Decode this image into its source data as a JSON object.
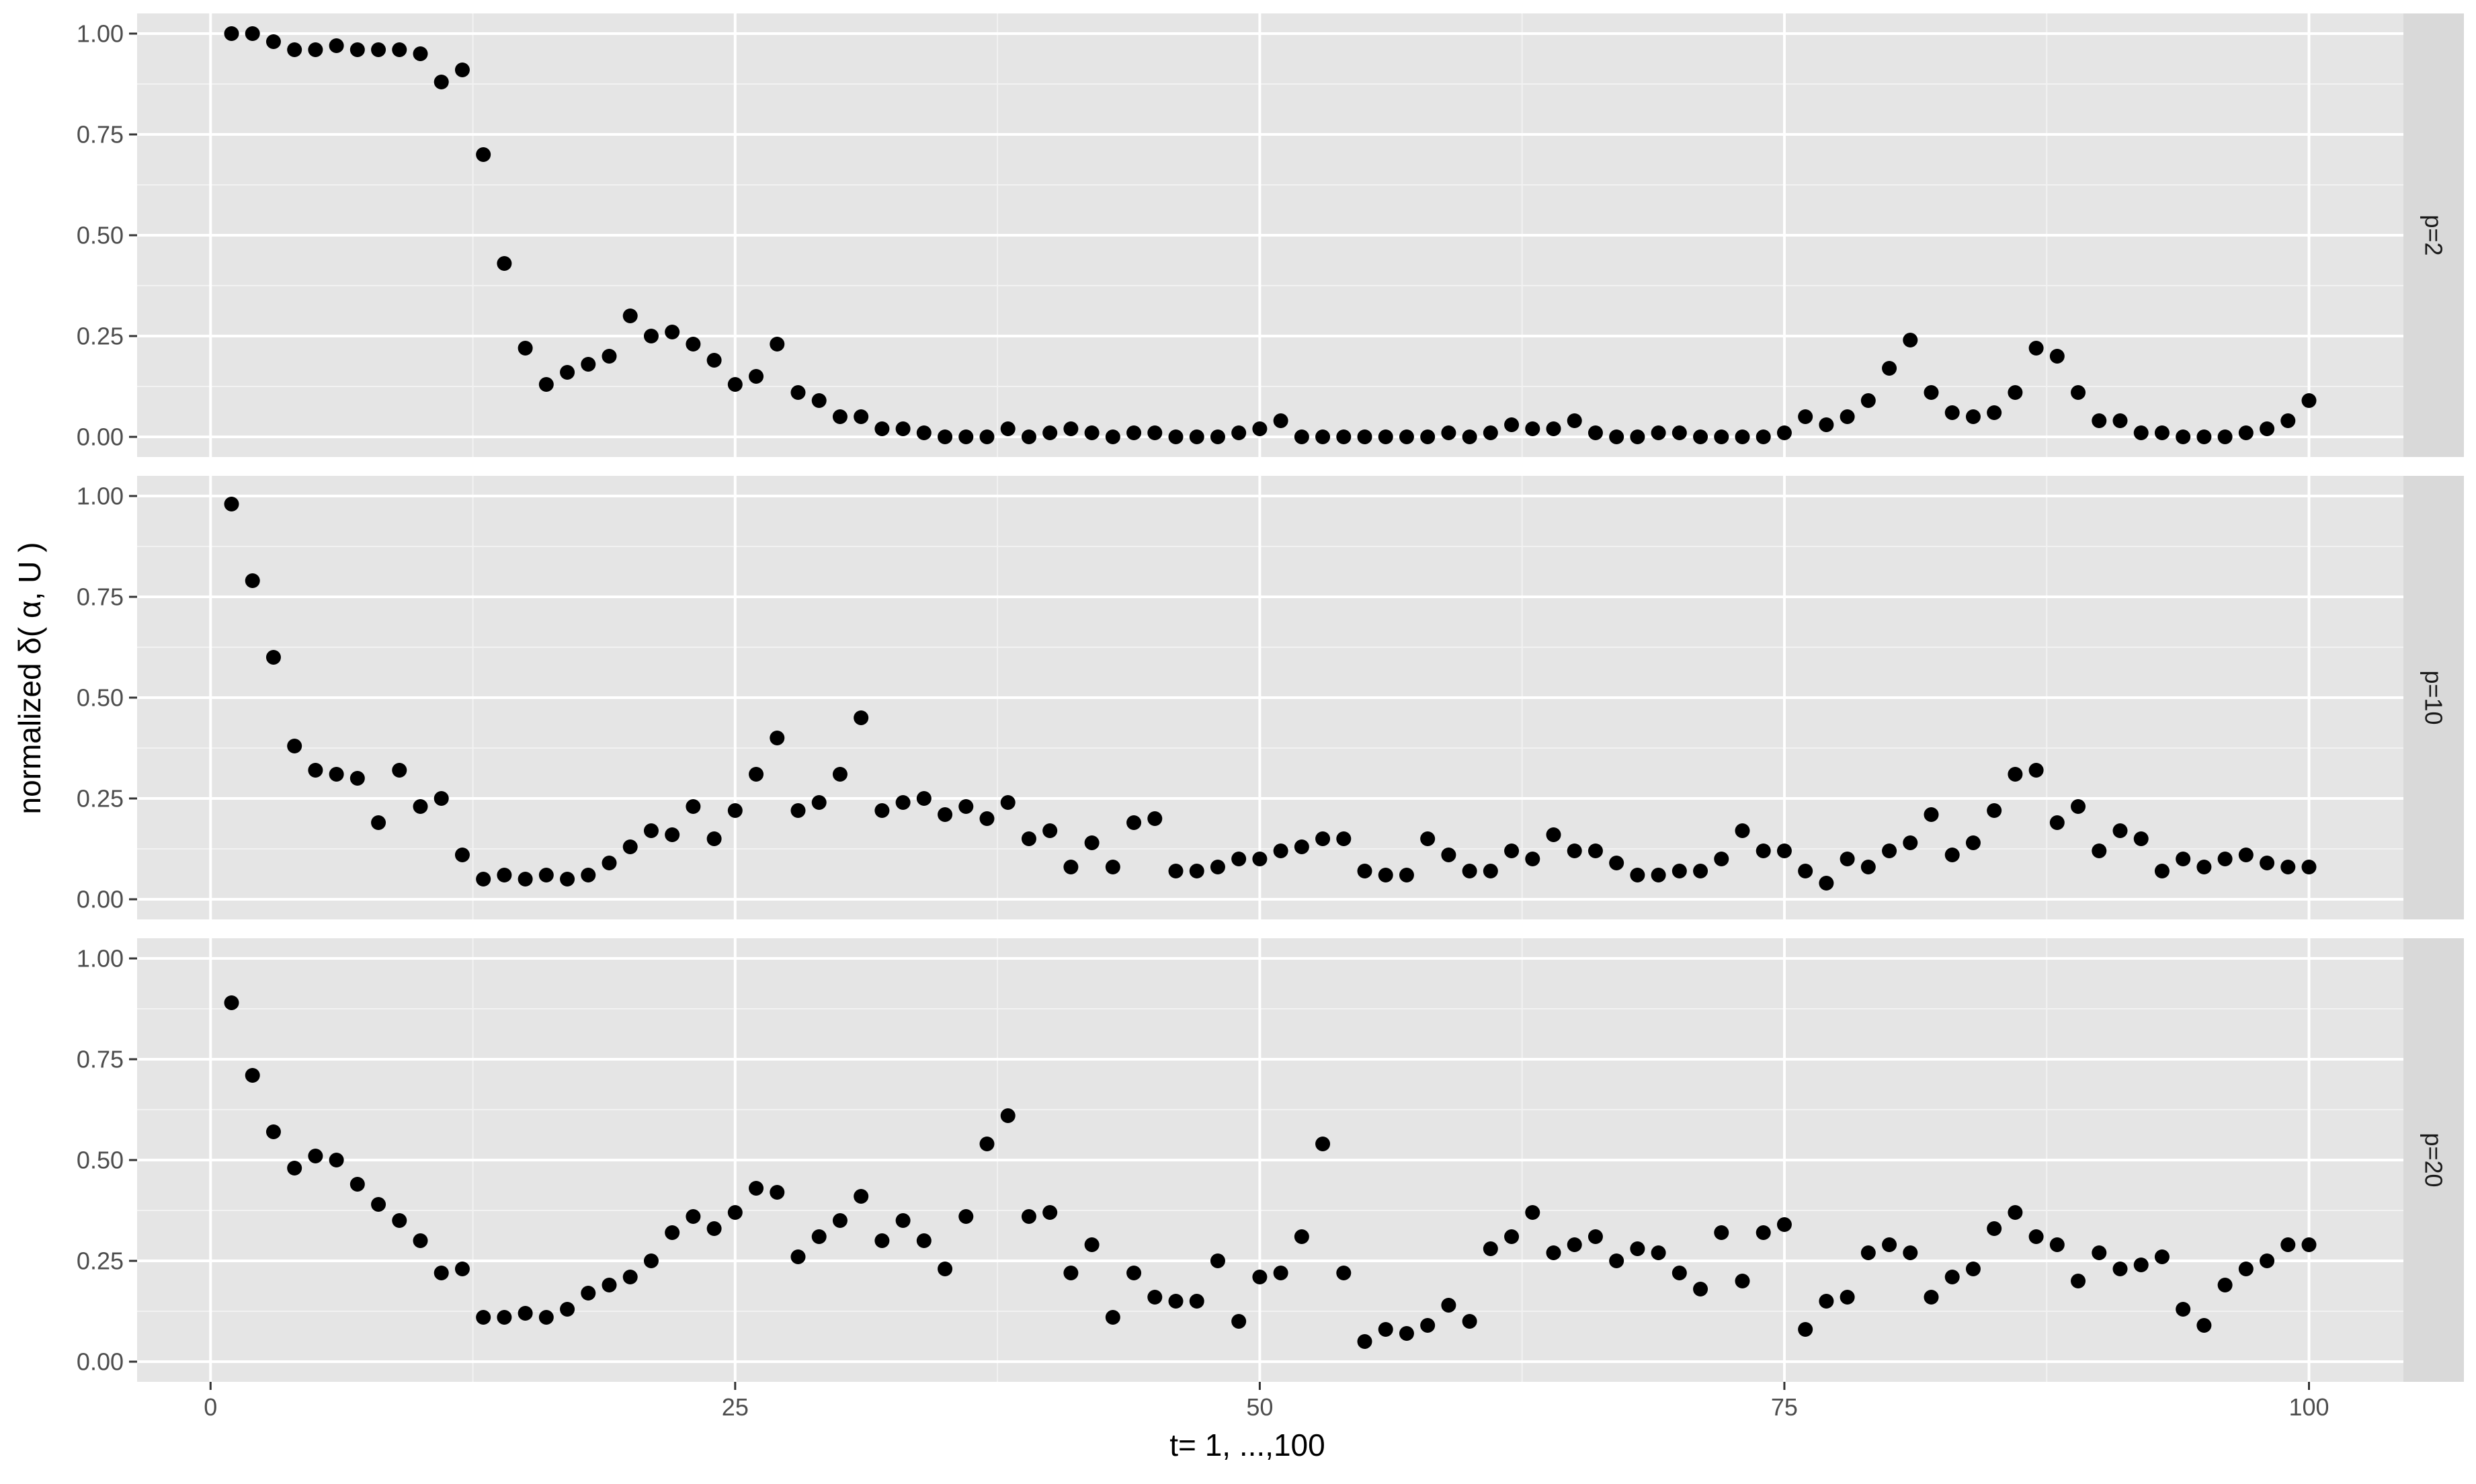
{
  "chart_data": {
    "type": "scatter",
    "layout": "faceted",
    "xlabel": "t= 1, ...,100",
    "ylabel": "normalized δ( α, U )",
    "xlim": [
      -3.5,
      104.5
    ],
    "ylim": [
      -0.05,
      1.05
    ],
    "x_ticks": [
      0,
      25,
      50,
      75,
      100
    ],
    "x_tick_labels": [
      "0",
      "25",
      "50",
      "75",
      "100"
    ],
    "y_ticks": [
      0,
      0.25,
      0.5,
      0.75,
      1.0
    ],
    "y_tick_labels": [
      "0.00",
      "0.25",
      "0.50",
      "0.75",
      "1.00"
    ],
    "grid": true,
    "panel_background": "#e5e5e5",
    "strip_background": "#d9d9d9",
    "point_color": "#000000",
    "facets": [
      {
        "label": "p=2",
        "x": [
          1,
          2,
          3,
          4,
          5,
          6,
          7,
          8,
          9,
          10,
          11,
          12,
          13,
          14,
          15,
          16,
          17,
          18,
          19,
          20,
          21,
          22,
          23,
          24,
          25,
          26,
          27,
          28,
          29,
          30,
          31,
          32,
          33,
          34,
          35,
          36,
          37,
          38,
          39,
          40,
          41,
          42,
          43,
          44,
          45,
          46,
          47,
          48,
          49,
          50,
          51,
          52,
          53,
          54,
          55,
          56,
          57,
          58,
          59,
          60,
          61,
          62,
          63,
          64,
          65,
          66,
          67,
          68,
          69,
          70,
          71,
          72,
          73,
          74,
          75,
          76,
          77,
          78,
          79,
          80,
          81,
          82,
          83,
          84,
          85,
          86,
          87,
          88,
          89,
          90,
          91,
          92,
          93,
          94,
          95,
          96,
          97,
          98,
          99,
          100
        ],
        "y": [
          1.0,
          1.0,
          0.98,
          0.96,
          0.96,
          0.97,
          0.96,
          0.96,
          0.96,
          0.95,
          0.88,
          0.91,
          0.7,
          0.43,
          0.22,
          0.13,
          0.16,
          0.18,
          0.2,
          0.3,
          0.25,
          0.26,
          0.23,
          0.19,
          0.13,
          0.15,
          0.23,
          0.11,
          0.09,
          0.05,
          0.05,
          0.02,
          0.02,
          0.01,
          0.0,
          0.0,
          0.0,
          0.02,
          0.0,
          0.01,
          0.02,
          0.01,
          0.0,
          0.01,
          0.01,
          0.0,
          0.0,
          0.0,
          0.01,
          0.02,
          0.04,
          0.0,
          0.0,
          0.0,
          0.0,
          0.0,
          0.0,
          0.0,
          0.01,
          0.0,
          0.01,
          0.03,
          0.02,
          0.02,
          0.04,
          0.01,
          0.0,
          0.0,
          0.01,
          0.01,
          0.0,
          0.0,
          0.0,
          0.0,
          0.01,
          0.05,
          0.03,
          0.05,
          0.09,
          0.17,
          0.24,
          0.11,
          0.06,
          0.05,
          0.06,
          0.11,
          0.22,
          0.2,
          0.11,
          0.04,
          0.04,
          0.01,
          0.01,
          0.0,
          0.0,
          0.0,
          0.01,
          0.02,
          0.04,
          0.09
        ]
      },
      {
        "label": "p=10",
        "x": [
          1,
          2,
          3,
          4,
          5,
          6,
          7,
          8,
          9,
          10,
          11,
          12,
          13,
          14,
          15,
          16,
          17,
          18,
          19,
          20,
          21,
          22,
          23,
          24,
          25,
          26,
          27,
          28,
          29,
          30,
          31,
          32,
          33,
          34,
          35,
          36,
          37,
          38,
          39,
          40,
          41,
          42,
          43,
          44,
          45,
          46,
          47,
          48,
          49,
          50,
          51,
          52,
          53,
          54,
          55,
          56,
          57,
          58,
          59,
          60,
          61,
          62,
          63,
          64,
          65,
          66,
          67,
          68,
          69,
          70,
          71,
          72,
          73,
          74,
          75,
          76,
          77,
          78,
          79,
          80,
          81,
          82,
          83,
          84,
          85,
          86,
          87,
          88,
          89,
          90,
          91,
          92,
          93,
          94,
          95,
          96,
          97,
          98,
          99,
          100
        ],
        "y": [
          0.98,
          0.79,
          0.6,
          0.38,
          0.32,
          0.31,
          0.3,
          0.19,
          0.32,
          0.23,
          0.25,
          0.11,
          0.05,
          0.06,
          0.05,
          0.06,
          0.05,
          0.06,
          0.09,
          0.13,
          0.17,
          0.16,
          0.23,
          0.15,
          0.22,
          0.31,
          0.4,
          0.22,
          0.24,
          0.31,
          0.45,
          0.22,
          0.24,
          0.25,
          0.21,
          0.23,
          0.2,
          0.24,
          0.15,
          0.17,
          0.08,
          0.14,
          0.08,
          0.19,
          0.2,
          0.07,
          0.07,
          0.08,
          0.1,
          0.1,
          0.12,
          0.13,
          0.15,
          0.15,
          0.07,
          0.06,
          0.06,
          0.15,
          0.11,
          0.07,
          0.07,
          0.12,
          0.1,
          0.16,
          0.12,
          0.12,
          0.09,
          0.06,
          0.06,
          0.07,
          0.07,
          0.1,
          0.17,
          0.12,
          0.12,
          0.07,
          0.04,
          0.1,
          0.08,
          0.12,
          0.14,
          0.21,
          0.11,
          0.14,
          0.22,
          0.31,
          0.32,
          0.19,
          0.23,
          0.12,
          0.17,
          0.15,
          0.07,
          0.1,
          0.08,
          0.1,
          0.11,
          0.09,
          0.08,
          0.08
        ]
      },
      {
        "label": "p=20",
        "x": [
          1,
          2,
          3,
          4,
          5,
          6,
          7,
          8,
          9,
          10,
          11,
          12,
          13,
          14,
          15,
          16,
          17,
          18,
          19,
          20,
          21,
          22,
          23,
          24,
          25,
          26,
          27,
          28,
          29,
          30,
          31,
          32,
          33,
          34,
          35,
          36,
          37,
          38,
          39,
          40,
          41,
          42,
          43,
          44,
          45,
          46,
          47,
          48,
          49,
          50,
          51,
          52,
          53,
          54,
          55,
          56,
          57,
          58,
          59,
          60,
          61,
          62,
          63,
          64,
          65,
          66,
          67,
          68,
          69,
          70,
          71,
          72,
          73,
          74,
          75,
          76,
          77,
          78,
          79,
          80,
          81,
          82,
          83,
          84,
          85,
          86,
          87,
          88,
          89,
          90,
          91,
          92,
          93,
          94,
          95,
          96,
          97,
          98,
          99,
          100
        ],
        "y": [
          0.89,
          0.71,
          0.57,
          0.48,
          0.51,
          0.5,
          0.44,
          0.39,
          0.35,
          0.3,
          0.22,
          0.23,
          0.11,
          0.11,
          0.12,
          0.11,
          0.13,
          0.17,
          0.19,
          0.21,
          0.25,
          0.32,
          0.36,
          0.33,
          0.37,
          0.43,
          0.42,
          0.26,
          0.31,
          0.35,
          0.41,
          0.3,
          0.35,
          0.3,
          0.23,
          0.36,
          0.54,
          0.61,
          0.36,
          0.37,
          0.22,
          0.29,
          0.11,
          0.22,
          0.16,
          0.15,
          0.15,
          0.25,
          0.1,
          0.21,
          0.22,
          0.31,
          0.54,
          0.22,
          0.05,
          0.08,
          0.07,
          0.09,
          0.14,
          0.1,
          0.28,
          0.31,
          0.37,
          0.27,
          0.29,
          0.31,
          0.25,
          0.28,
          0.27,
          0.22,
          0.18,
          0.32,
          0.2,
          0.32,
          0.34,
          0.08,
          0.15,
          0.16,
          0.27,
          0.29,
          0.27,
          0.16,
          0.21,
          0.23,
          0.33,
          0.37,
          0.31,
          0.29,
          0.2,
          0.27,
          0.23,
          0.24,
          0.26,
          0.13,
          0.09,
          0.19,
          0.23,
          0.25,
          0.29,
          0.29
        ]
      }
    ]
  }
}
